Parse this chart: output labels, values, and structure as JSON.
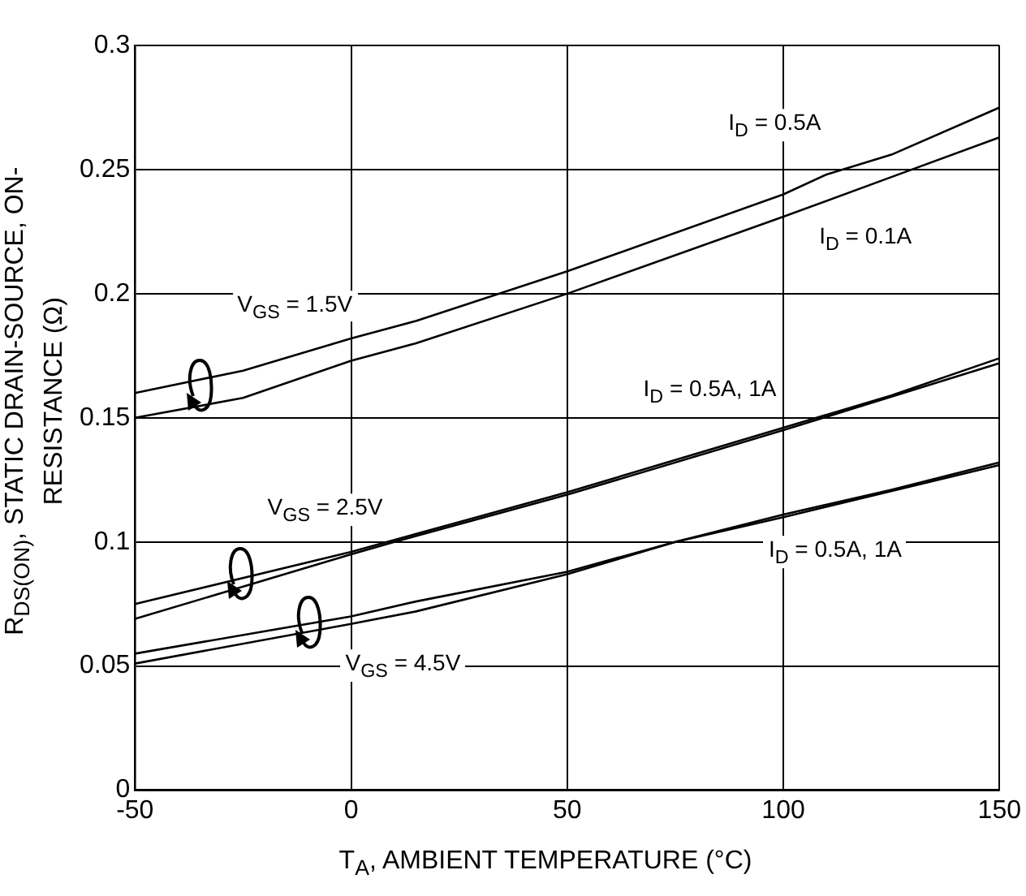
{
  "chart_data": {
    "type": "line",
    "xlabel": "T$_{A}$, AMBIENT TEMPERATURE (°C)",
    "ylabel": "R$_{DS(ON)}$, STATIC DRAIN-SOURCE, ON-RESISTANCE (Ω)",
    "xlim": [
      -50,
      150
    ],
    "xticks": [
      -50,
      0,
      50,
      100,
      150
    ],
    "ylim": [
      0,
      0.3
    ],
    "yticks": [
      0,
      0.05,
      0.1,
      0.15,
      0.2,
      0.25,
      0.3
    ],
    "grid": true,
    "legend": false,
    "marker": "none",
    "line_style": "solid",
    "series": [
      {
        "color": "#000000",
        "x": [
          -50,
          -25,
          0,
          15,
          50,
          100,
          110,
          125,
          150
        ],
        "values": [
          0.16,
          0.169,
          0.182,
          0.189,
          0.209,
          0.24,
          0.248,
          0.256,
          0.275
        ]
      },
      {
        "color": "#000000",
        "x": [
          -50,
          -25,
          0,
          15,
          50,
          100,
          125,
          150
        ],
        "values": [
          0.15,
          0.158,
          0.173,
          0.18,
          0.2,
          0.231,
          0.247,
          0.263
        ]
      },
      {
        "color": "#000000",
        "x": [
          -50,
          0,
          25,
          50,
          100,
          125,
          150
        ],
        "values": [
          0.075,
          0.096,
          0.108,
          0.12,
          0.146,
          0.159,
          0.174
        ]
      },
      {
        "color": "#000000",
        "x": [
          -50,
          0,
          10,
          50,
          100,
          150
        ],
        "values": [
          0.069,
          0.095,
          0.1,
          0.119,
          0.145,
          0.172
        ]
      },
      {
        "color": "#000000",
        "x": [
          -50,
          0,
          15,
          50,
          75,
          100,
          125,
          150
        ],
        "values": [
          0.055,
          0.07,
          0.076,
          0.088,
          0.1,
          0.111,
          0.121,
          0.132
        ]
      },
      {
        "color": "#000000",
        "x": [
          -50,
          0,
          15,
          50,
          75,
          100,
          150
        ],
        "values": [
          0.051,
          0.067,
          0.072,
          0.087,
          0.1,
          0.11,
          0.131
        ]
      }
    ],
    "annotations": [
      "I$_{D}$ = 0.5A",
      "I$_{D}$ = 0.1A",
      "V$_{GS}$ = 1.5V",
      "I$_{D}$ = 0.5A, 1A",
      "V$_{GS}$ = 2.5V",
      "I$_{D}$ = 0.5A, 1A",
      "V$_{GS}$ = 4.5V"
    ]
  }
}
